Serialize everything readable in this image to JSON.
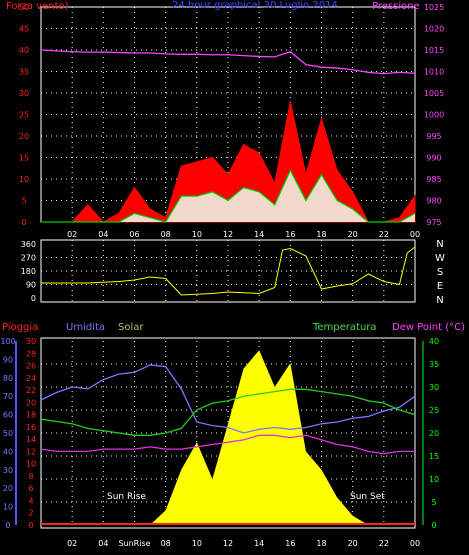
{
  "header": {
    "left": "Forza vento)",
    "center": "24 hour graphical 30 Luglio 2014",
    "right": "Pressione"
  },
  "labels2": {
    "pioggia": "Pioggia",
    "umidita": "Umidita",
    "solar": "Solar",
    "temperatura": "Temperatura",
    "dew": "Dew Point (°C)",
    "sunrise": "Sun Rise",
    "sunset": "Sun Set",
    "sunrise_tick": "SunRise"
  },
  "colors": {
    "wind": "#ff0000",
    "gust": "#ff0000",
    "avgwind": "#00cc00",
    "pressure": "#ff44ff",
    "direction": "#ffff00",
    "humidity": "#7777ff",
    "solar": "#ffff00",
    "temperature": "#22cc22",
    "dewpoint": "#dd33dd",
    "rain": "#ff2222",
    "grid": "#ffffff",
    "axis_blue": "#5555ff",
    "axis_green": "#00ff00"
  },
  "chart_data": [
    {
      "type": "line",
      "title": "24 hour graphical 30 Luglio 2014",
      "x_ticks": [
        "02",
        "04",
        "06",
        "08",
        "10",
        "12",
        "14",
        "16",
        "18",
        "20",
        "22",
        "00"
      ],
      "left_axis": {
        "label": "Forza vento)",
        "ticks": [
          0,
          5,
          10,
          15,
          20,
          25,
          30,
          35,
          40,
          45,
          50
        ],
        "ylim": [
          0,
          50
        ]
      },
      "right_axis": {
        "label": "Pressione",
        "ticks": [
          975,
          980,
          985,
          990,
          995,
          1000,
          1005,
          1010,
          1015,
          1020,
          1025
        ],
        "ylim": [
          975,
          1025
        ]
      },
      "x_hours": [
        0,
        1,
        2,
        3,
        4,
        5,
        6,
        7,
        8,
        9,
        10,
        11,
        12,
        13,
        14,
        15,
        16,
        17,
        18,
        19,
        20,
        21,
        22,
        23,
        24
      ],
      "series": [
        {
          "name": "Pressione",
          "axis": "right",
          "values": [
            1015,
            1014.8,
            1014.6,
            1014.5,
            1014.5,
            1014.4,
            1014.3,
            1014.3,
            1014.1,
            1014.0,
            1014.0,
            1013.9,
            1013.9,
            1013.7,
            1013.5,
            1013.4,
            1014.6,
            1011.6,
            1011.0,
            1010.8,
            1010.4,
            1009.8,
            1009.5,
            1009.8,
            1009.6
          ]
        },
        {
          "name": "gust",
          "axis": "left",
          "values": [
            0,
            0,
            0,
            4,
            0,
            2,
            8,
            3,
            1,
            13,
            14,
            15,
            11,
            18,
            16,
            9,
            28,
            11,
            24,
            12,
            7,
            0,
            0,
            1,
            6
          ]
        },
        {
          "name": "avg",
          "axis": "left",
          "values": [
            0,
            0,
            0,
            0,
            0,
            0,
            2,
            1,
            0,
            6,
            6,
            7,
            5,
            8,
            7,
            4,
            12,
            5,
            11,
            5,
            3,
            0,
            0,
            0,
            2
          ]
        }
      ]
    },
    {
      "type": "line",
      "title": "",
      "y_ticks": [
        0,
        90,
        180,
        270,
        360
      ],
      "compass": [
        "N",
        "W",
        "S",
        "E",
        "N"
      ],
      "ylim": [
        0,
        360
      ],
      "x_hours": [
        0,
        1,
        2,
        3,
        4,
        5,
        6,
        7,
        8,
        9,
        10,
        11,
        12,
        13,
        14,
        15,
        15.5,
        16,
        17,
        18,
        19,
        20,
        21,
        22,
        23,
        23.5,
        24
      ],
      "series": [
        {
          "name": "direction",
          "values": [
            100,
            100,
            100,
            100,
            105,
            110,
            120,
            140,
            130,
            20,
            25,
            30,
            40,
            35,
            30,
            70,
            320,
            330,
            280,
            60,
            80,
            95,
            160,
            110,
            90,
            300,
            340
          ]
        }
      ]
    },
    {
      "type": "line",
      "title": "",
      "x_ticks": [
        "02",
        "04",
        "SunRise",
        "08",
        "10",
        "12",
        "14",
        "16",
        "18",
        "20",
        "22",
        "00"
      ],
      "left_axes": [
        {
          "label": "Pioggia",
          "ticks": [
            0,
            2,
            4,
            6,
            8,
            10,
            12,
            14,
            16,
            18,
            20,
            22,
            24,
            26,
            28,
            30
          ],
          "ylim": [
            0,
            30
          ]
        },
        {
          "label": "Umidita",
          "ticks": [
            0,
            10,
            20,
            30,
            40,
            50,
            60,
            70,
            80,
            90,
            100
          ],
          "ylim": [
            0,
            100
          ]
        }
      ],
      "right_axis": {
        "label": "Dew Point (°C)",
        "ticks": [
          0,
          5,
          10,
          15,
          20,
          25,
          30,
          35,
          40
        ],
        "ylim": [
          0,
          40
        ]
      },
      "annotations": [
        "Sun Rise",
        "Sun Set"
      ],
      "x_hours": [
        0,
        1,
        2,
        3,
        4,
        5,
        6,
        7,
        8,
        9,
        10,
        11,
        12,
        13,
        14,
        15,
        16,
        17,
        18,
        19,
        20,
        21,
        22,
        23,
        24
      ],
      "series": [
        {
          "name": "Umidita",
          "axis": "humidity",
          "values": [
            68,
            72,
            75,
            74,
            79,
            82,
            83,
            87,
            86,
            74,
            56,
            54,
            53,
            50,
            52,
            53,
            52,
            53,
            55,
            56,
            58,
            59,
            62,
            64,
            70
          ]
        },
        {
          "name": "Temperatura",
          "axis": "right",
          "values": [
            23,
            22.5,
            22,
            21,
            20.5,
            20,
            19.5,
            19.5,
            20,
            21,
            25,
            26.5,
            27,
            28,
            28.5,
            29,
            29.5,
            29.5,
            29,
            28.5,
            28,
            27,
            26.5,
            25,
            24
          ]
        },
        {
          "name": "Dew Point (°C)",
          "axis": "right",
          "values": [
            16.5,
            16,
            16,
            16,
            16.5,
            16.5,
            16.5,
            17,
            16.5,
            16.5,
            17,
            17.5,
            18,
            18.5,
            19.5,
            19.5,
            19,
            19.5,
            18.5,
            17.5,
            17,
            16,
            15.5,
            16,
            16
          ]
        },
        {
          "name": "Solar",
          "axis": "solar",
          "values": [
            0,
            0,
            0,
            0,
            0,
            0,
            0,
            0,
            0.08,
            0.3,
            0.45,
            0.25,
            0.55,
            0.85,
            0.95,
            0.75,
            0.88,
            0.4,
            0.3,
            0.15,
            0.05,
            0,
            0,
            0,
            0
          ]
        },
        {
          "name": "Pioggia",
          "axis": "rain",
          "values": [
            0,
            0,
            0,
            0,
            0,
            0,
            0,
            0,
            0,
            0,
            0,
            0,
            0,
            0,
            0,
            0,
            0,
            0,
            0,
            0,
            0,
            0,
            0,
            0,
            0
          ]
        }
      ]
    }
  ]
}
